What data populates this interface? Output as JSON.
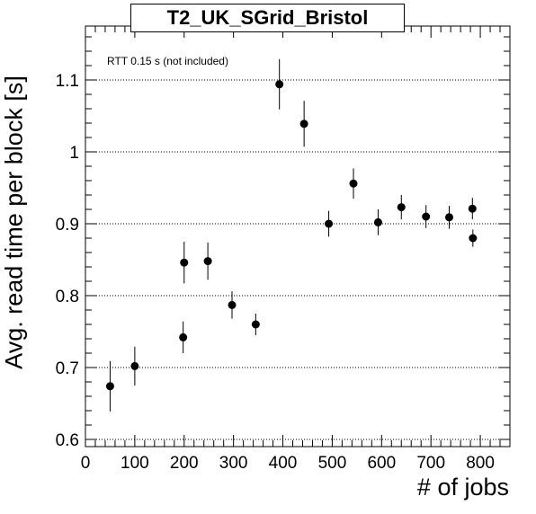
{
  "chart_data": {
    "type": "scatter",
    "title": "T2_UK_SGrid_Bristol",
    "xlabel": "# of jobs",
    "ylabel": "Avg. read time per block [s]",
    "annotation": "RTT 0.15 s (not included)",
    "xlim": [
      0,
      860
    ],
    "ylim": [
      0.59,
      1.175
    ],
    "x_ticks": [
      0,
      100,
      200,
      300,
      400,
      500,
      600,
      700,
      800
    ],
    "x_tick_labels": [
      "0",
      "100",
      "200",
      "300",
      "400",
      "500",
      "600",
      "700",
      "800"
    ],
    "y_ticks": [
      0.6,
      0.7,
      0.8,
      0.9,
      1.0,
      1.1
    ],
    "y_tick_labels": [
      "0.6",
      "0.7",
      "0.8",
      "0.9",
      "1",
      "1.1"
    ],
    "grid": "horizontal dotted",
    "marker_color": "#000000",
    "points": [
      {
        "x": 50,
        "y": 0.674,
        "err": 0.035
      },
      {
        "x": 100,
        "y": 0.702,
        "err": 0.027
      },
      {
        "x": 198,
        "y": 0.742,
        "err": 0.022
      },
      {
        "x": 200,
        "y": 0.846,
        "err": 0.029
      },
      {
        "x": 248,
        "y": 0.848,
        "err": 0.026
      },
      {
        "x": 297,
        "y": 0.787,
        "err": 0.019
      },
      {
        "x": 345,
        "y": 0.76,
        "err": 0.015
      },
      {
        "x": 393,
        "y": 1.094,
        "err": 0.035
      },
      {
        "x": 443,
        "y": 1.039,
        "err": 0.032
      },
      {
        "x": 493,
        "y": 0.9,
        "err": 0.018
      },
      {
        "x": 543,
        "y": 0.956,
        "err": 0.021
      },
      {
        "x": 593,
        "y": 0.902,
        "err": 0.018
      },
      {
        "x": 640,
        "y": 0.923,
        "err": 0.017
      },
      {
        "x": 690,
        "y": 0.91,
        "err": 0.016
      },
      {
        "x": 737,
        "y": 0.909,
        "err": 0.016
      },
      {
        "x": 784,
        "y": 0.921,
        "err": 0.015
      },
      {
        "x": 785,
        "y": 0.88,
        "err": 0.012
      }
    ]
  }
}
